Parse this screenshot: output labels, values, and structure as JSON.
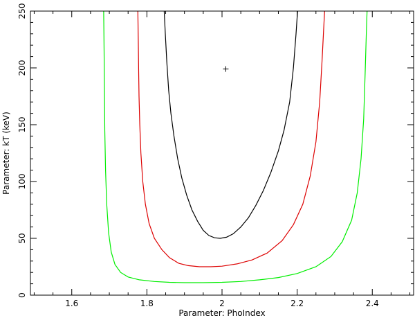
{
  "chart_data": {
    "type": "line",
    "title": "",
    "xlabel": "Parameter: PhoIndex",
    "ylabel": "Parameter: kT (keV)",
    "xlim": [
      1.49,
      2.51
    ],
    "ylim": [
      0,
      250
    ],
    "x_ticks": [
      1.6,
      1.8,
      2,
      2.2,
      2.4
    ],
    "x_tick_labels": [
      "1.6",
      "1.8",
      "2",
      "2.2",
      "2.4"
    ],
    "y_ticks": [
      0,
      50,
      100,
      150,
      200,
      250
    ],
    "y_tick_labels": [
      "0",
      "50",
      "100",
      "150",
      "200",
      "250"
    ],
    "grid": false,
    "legend": "none",
    "best_fit": {
      "x": 2.01,
      "y": 199,
      "marker": "+"
    },
    "series": [
      {
        "color": "#000000",
        "points": [
          [
            1.846,
            250
          ],
          [
            1.849,
            230
          ],
          [
            1.853,
            205
          ],
          [
            1.858,
            180
          ],
          [
            1.864,
            160
          ],
          [
            1.872,
            140
          ],
          [
            1.882,
            120
          ],
          [
            1.893,
            103
          ],
          [
            1.906,
            88
          ],
          [
            1.92,
            75
          ],
          [
            1.935,
            65
          ],
          [
            1.95,
            57
          ],
          [
            1.965,
            52.5
          ],
          [
            1.98,
            50.5
          ],
          [
            1.995,
            50
          ],
          [
            2.012,
            51
          ],
          [
            2.03,
            54
          ],
          [
            2.05,
            60
          ],
          [
            2.07,
            68
          ],
          [
            2.09,
            79
          ],
          [
            2.11,
            92
          ],
          [
            2.13,
            108
          ],
          [
            2.15,
            127
          ],
          [
            2.165,
            145
          ],
          [
            2.18,
            170
          ],
          [
            2.19,
            200
          ],
          [
            2.197,
            230
          ],
          [
            2.201,
            250
          ]
        ]
      },
      {
        "color": "#dd0000",
        "points": [
          [
            1.776,
            250
          ],
          [
            1.777,
            225
          ],
          [
            1.778,
            200
          ],
          [
            1.779,
            175
          ],
          [
            1.781,
            150
          ],
          [
            1.784,
            125
          ],
          [
            1.789,
            100
          ],
          [
            1.796,
            80
          ],
          [
            1.806,
            63
          ],
          [
            1.82,
            50
          ],
          [
            1.84,
            40
          ],
          [
            1.86,
            33
          ],
          [
            1.885,
            28
          ],
          [
            1.91,
            26
          ],
          [
            1.94,
            25
          ],
          [
            1.97,
            25
          ],
          [
            2.0,
            25.5
          ],
          [
            2.04,
            27.5
          ],
          [
            2.08,
            31
          ],
          [
            2.12,
            37
          ],
          [
            2.16,
            48
          ],
          [
            2.19,
            62
          ],
          [
            2.215,
            80
          ],
          [
            2.235,
            105
          ],
          [
            2.25,
            135
          ],
          [
            2.26,
            170
          ],
          [
            2.266,
            205
          ],
          [
            2.27,
            230
          ],
          [
            2.273,
            250
          ]
        ]
      },
      {
        "color": "#00ee00",
        "points": [
          [
            1.685,
            250
          ],
          [
            1.686,
            215
          ],
          [
            1.687,
            180
          ],
          [
            1.688,
            145
          ],
          [
            1.69,
            110
          ],
          [
            1.693,
            80
          ],
          [
            1.698,
            55
          ],
          [
            1.705,
            38
          ],
          [
            1.715,
            27
          ],
          [
            1.73,
            20
          ],
          [
            1.75,
            16
          ],
          [
            1.78,
            13.5
          ],
          [
            1.82,
            12
          ],
          [
            1.86,
            11.3
          ],
          [
            1.9,
            11
          ],
          [
            1.95,
            11
          ],
          [
            2.0,
            11.3
          ],
          [
            2.05,
            12
          ],
          [
            2.1,
            13.5
          ],
          [
            2.15,
            15.5
          ],
          [
            2.2,
            19
          ],
          [
            2.25,
            25
          ],
          [
            2.29,
            34
          ],
          [
            2.32,
            47
          ],
          [
            2.345,
            66
          ],
          [
            2.36,
            90
          ],
          [
            2.37,
            120
          ],
          [
            2.377,
            155
          ],
          [
            2.381,
            195
          ],
          [
            2.384,
            230
          ],
          [
            2.386,
            250
          ]
        ]
      }
    ]
  }
}
